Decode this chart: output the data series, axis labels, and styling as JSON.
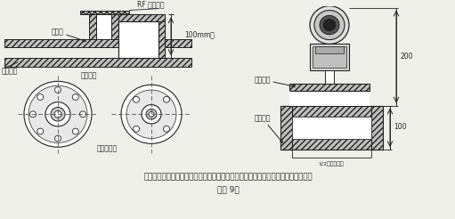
{
  "title_text": "插入式流量计短管制作、安装示意图，根据流量计算采用不同的法兰及短管公称直径",
  "subtitle_text": "（图 9）",
  "bg_color": "#f0f0eb",
  "line_color": "#222222",
  "gray_fill": "#c0c0c0",
  "hatch_fill": "#d8d8d8",
  "white_fill": "#ffffff",
  "labels": {
    "rf_flange": "RF 配套法兰",
    "weld_point": "焊接点",
    "process_pipe": "工艺管道",
    "weld_tube": "焊接短管",
    "pipe_center": "管道中心线",
    "fitting_tube": "配套短管",
    "pipe_wall": "管道外壁",
    "dim_100": "100mm高",
    "dim_200": "200",
    "dim_100r": "100",
    "half_od": "1/2管量管外径"
  }
}
